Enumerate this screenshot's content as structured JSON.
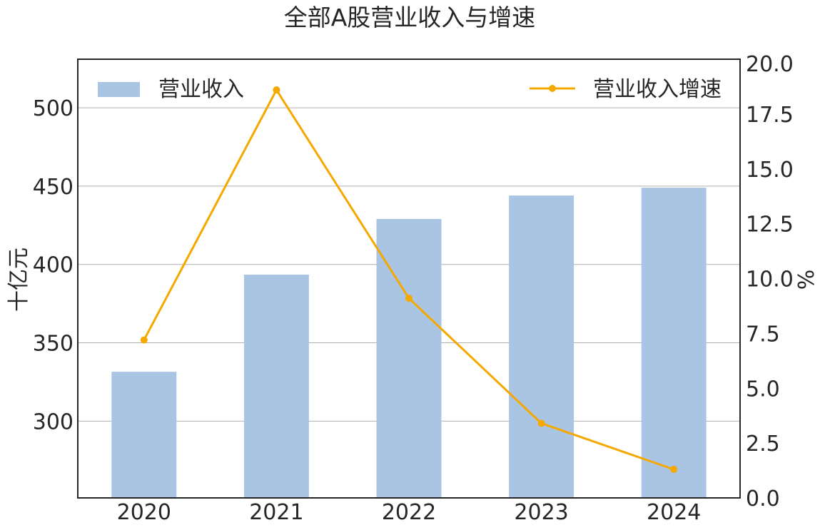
{
  "chart_data": {
    "type": "bar+line",
    "title": "全部A股营业收入与增速",
    "categories": [
      "2020",
      "2021",
      "2022",
      "2023",
      "2024"
    ],
    "y_left": {
      "label": "十亿元",
      "ylim": [
        251,
        531
      ],
      "ticks": [
        "300",
        "350",
        "400",
        "450",
        "500"
      ],
      "tick_values": [
        300,
        350,
        400,
        450,
        500
      ]
    },
    "y_right": {
      "label": "%",
      "ylim": [
        0,
        20
      ],
      "ticks": [
        "0.0",
        "2.5",
        "5.0",
        "7.5",
        "10.0",
        "12.5",
        "15.0",
        "17.5",
        "20.0"
      ],
      "tick_values": [
        0,
        2.5,
        5,
        7.5,
        10,
        12.5,
        15,
        17.5,
        20
      ]
    },
    "series": [
      {
        "name": "营业收入",
        "kind": "bar",
        "axis": "left",
        "color": "#aac4e4",
        "values": [
          331.5,
          393.5,
          429,
          444,
          449
        ]
      },
      {
        "name": "营业收入增速",
        "kind": "line",
        "axis": "right",
        "color": "#f5a800",
        "values": [
          7.2,
          18.6,
          9.1,
          3.4,
          1.3
        ]
      }
    ],
    "grid": "horizontal, left axis",
    "legend": {
      "bar": "top-left",
      "line": "top-right"
    }
  }
}
